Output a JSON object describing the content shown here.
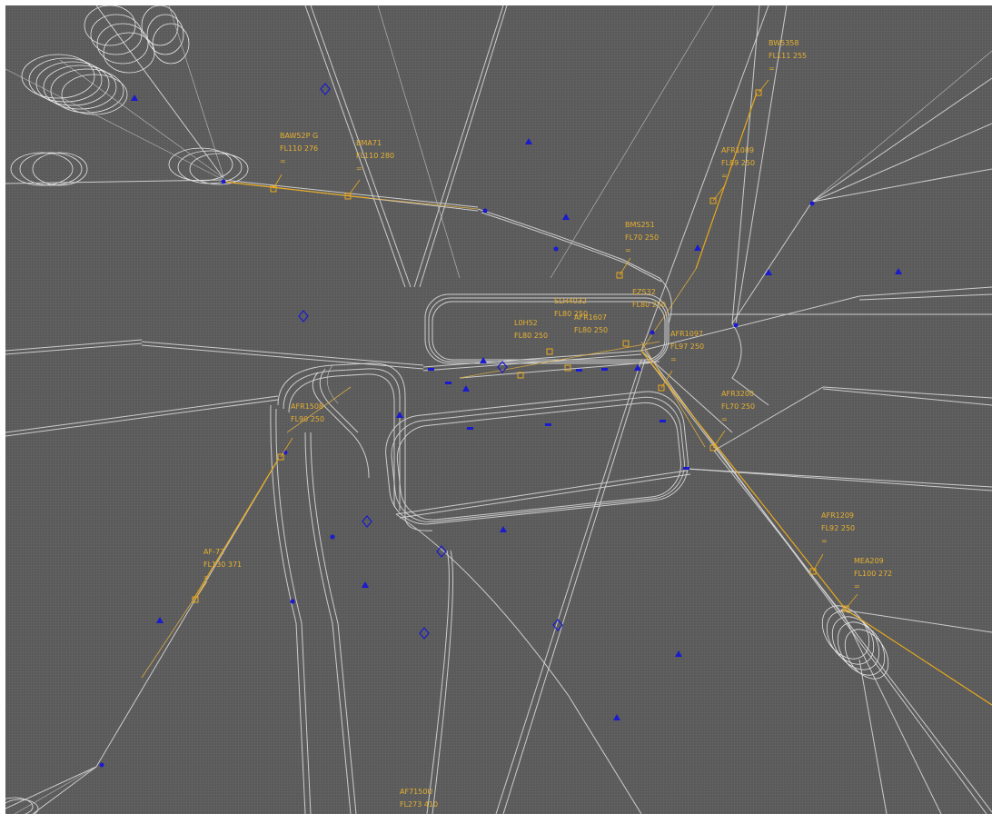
{
  "scope": {
    "background_color": "#5b5b5b",
    "track_color": "#d8d8d8",
    "active_color": "#e8a91c",
    "waypoint_color": "#1a1ad0"
  },
  "flights": [
    {
      "id": "flight-bms251",
      "callsign": "BMS251",
      "level": "FL70 250",
      "marker": "="
    },
    {
      "id": "flight-baw",
      "callsign": "BAW52P G",
      "level": "FL110 276",
      "marker": "="
    },
    {
      "id": "flight-bms71",
      "callsign": "BMA71",
      "level": "FL110 280",
      "marker": "="
    },
    {
      "id": "flight-bw",
      "callsign": "BW5358",
      "level": "FL111 255",
      "marker": "="
    },
    {
      "id": "flight-afr1",
      "callsign": "AFR1089",
      "level": "FL89 250",
      "marker": "="
    },
    {
      "id": "flight-afr2",
      "callsign": "AFR1097",
      "level": "FL97 250",
      "marker": "="
    },
    {
      "id": "flight-afr3",
      "callsign": "AFR3200",
      "level": "FL70 250",
      "marker": "="
    },
    {
      "id": "flight-afr4",
      "callsign": "AFR1209",
      "level": "FL92 250",
      "marker": "="
    },
    {
      "id": "flight-mea",
      "callsign": "MEA209",
      "level": "FL100 272",
      "marker": "="
    },
    {
      "id": "flight-af72",
      "callsign": "AF-72",
      "level": "FL130 371",
      "marker": "="
    },
    {
      "id": "flight-afr5",
      "callsign": "AFR1508",
      "level": "FL90 250",
      "marker": "="
    },
    {
      "id": "flight-af7",
      "callsign": "AF7150U",
      "level": "FL273 410",
      "marker": "="
    },
    {
      "id": "flight-sl",
      "callsign": "SLH4032",
      "level": "FL80 250",
      "marker": "="
    },
    {
      "id": "flight-e",
      "callsign": "EZS32",
      "level": "FL80 250",
      "marker": "="
    },
    {
      "id": "flight-l0",
      "callsign": "L0H52",
      "level": "FL80 250",
      "marker": "="
    },
    {
      "id": "flight-af",
      "callsign": "AFR1607",
      "level": "FL80 250",
      "marker": "="
    }
  ]
}
